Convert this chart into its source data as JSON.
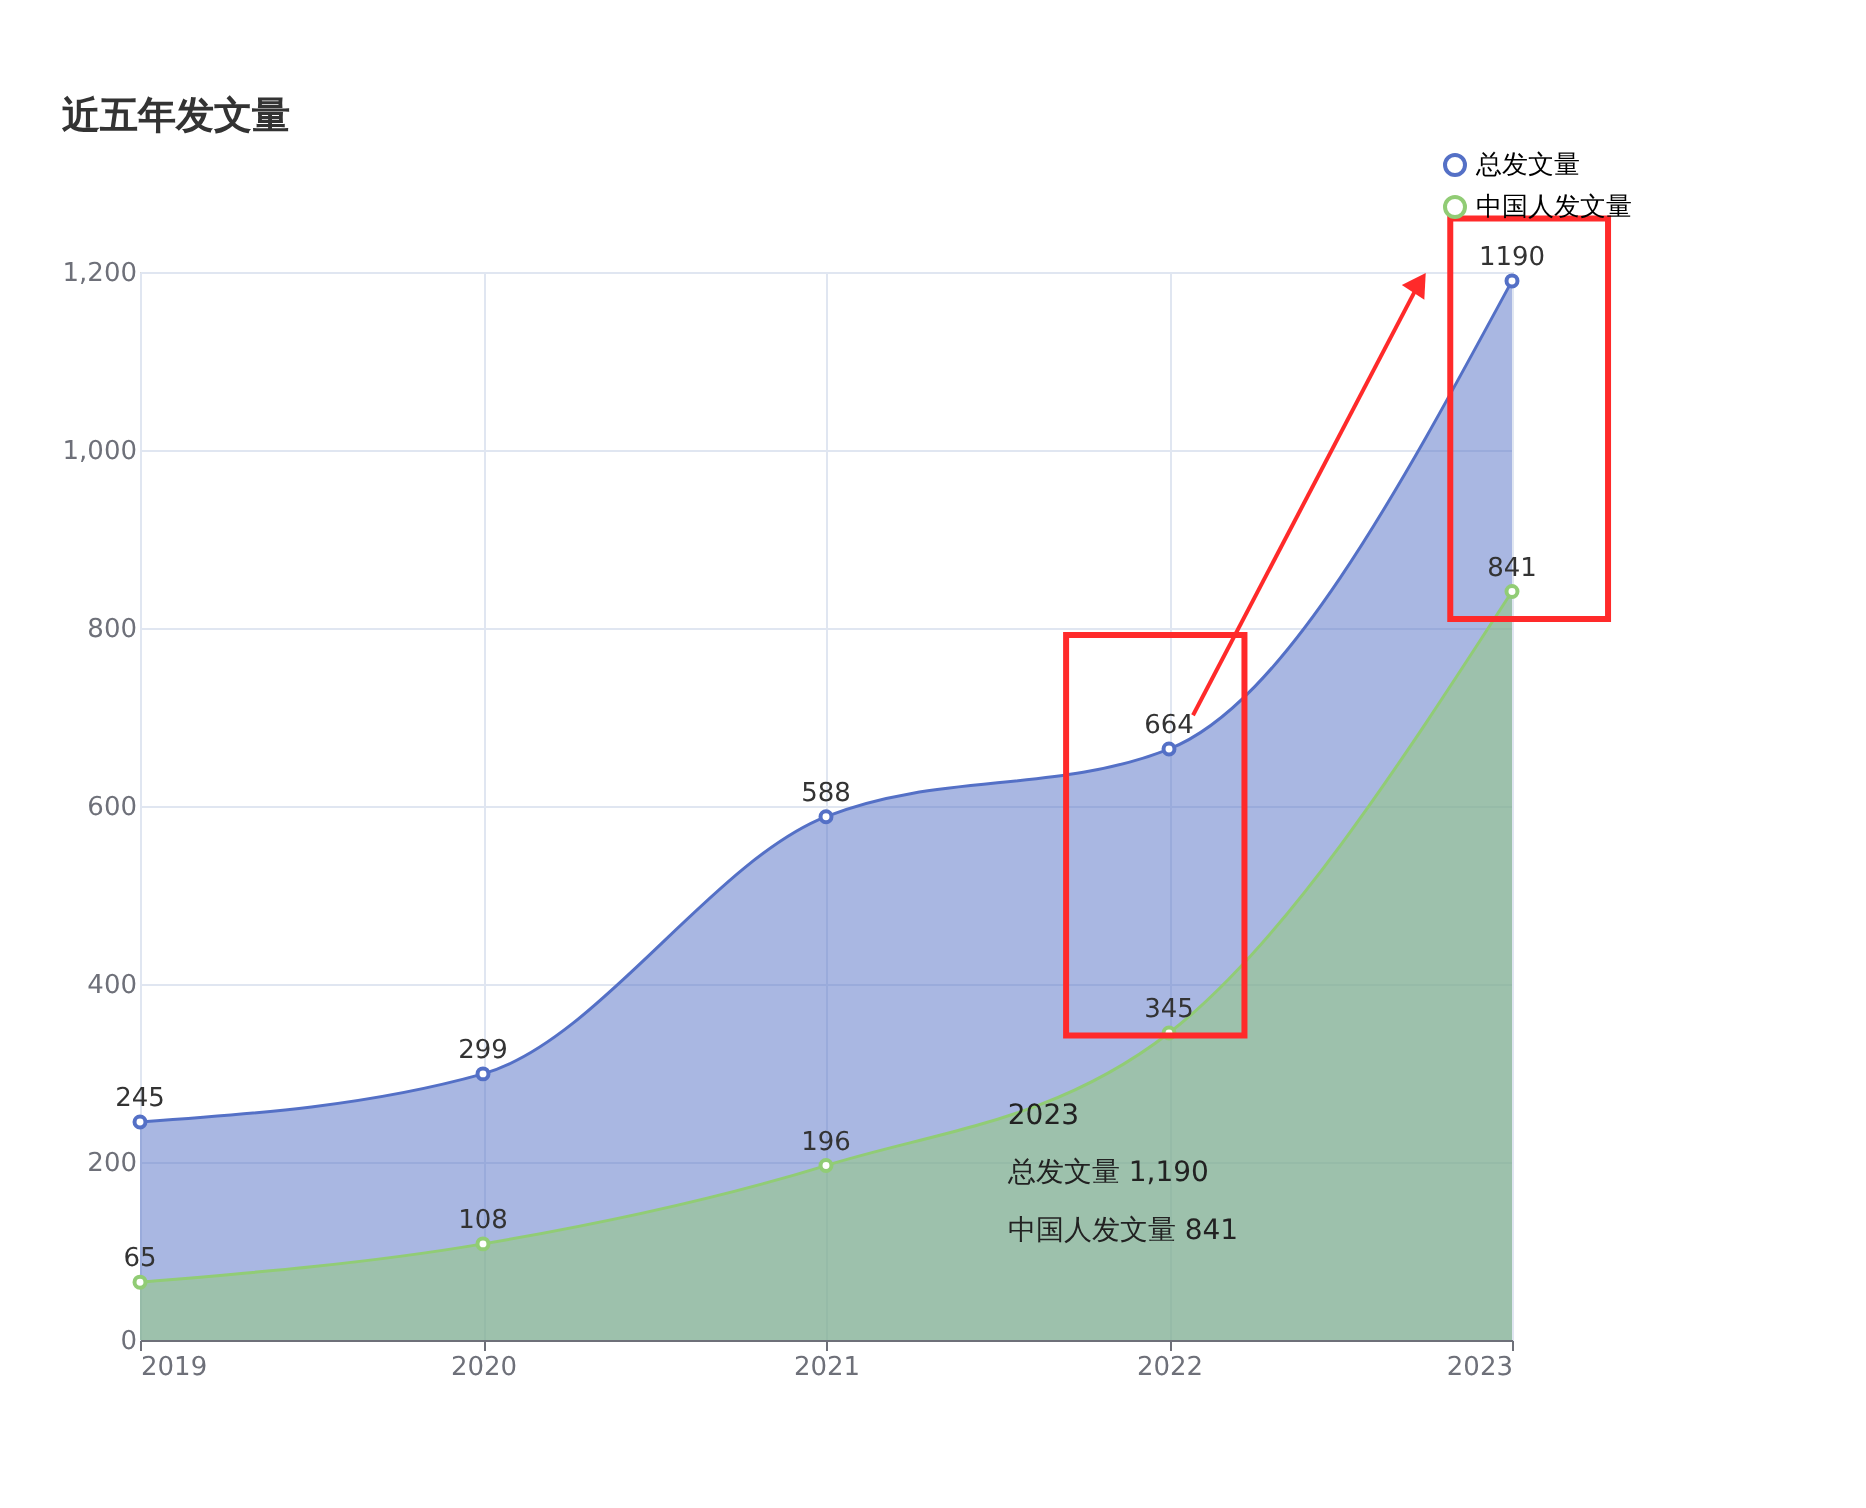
{
  "chart_data": {
    "type": "area",
    "title": "近五年发文量",
    "categories": [
      "2019",
      "2020",
      "2021",
      "2022",
      "2023"
    ],
    "series": [
      {
        "name": "总发文量",
        "color": "#5470c6",
        "values": [
          245,
          299,
          588,
          664,
          1190
        ]
      },
      {
        "name": "中国人发文量",
        "color": "#91cc75",
        "values": [
          65,
          108,
          196,
          345,
          841
        ]
      }
    ],
    "ylim": [
      0,
      1200
    ],
    "yticks": [
      0,
      200,
      400,
      600,
      800,
      {
        "value": 1000,
        "label": "1,000"
      },
      {
        "value": 1200,
        "label": "1,200"
      }
    ],
    "grid": true,
    "legend": "top right",
    "marker": "circle",
    "data_labels": true,
    "annotations": [
      "2023",
      "总发文量 1,190",
      "中国人发文量 841"
    ]
  }
}
